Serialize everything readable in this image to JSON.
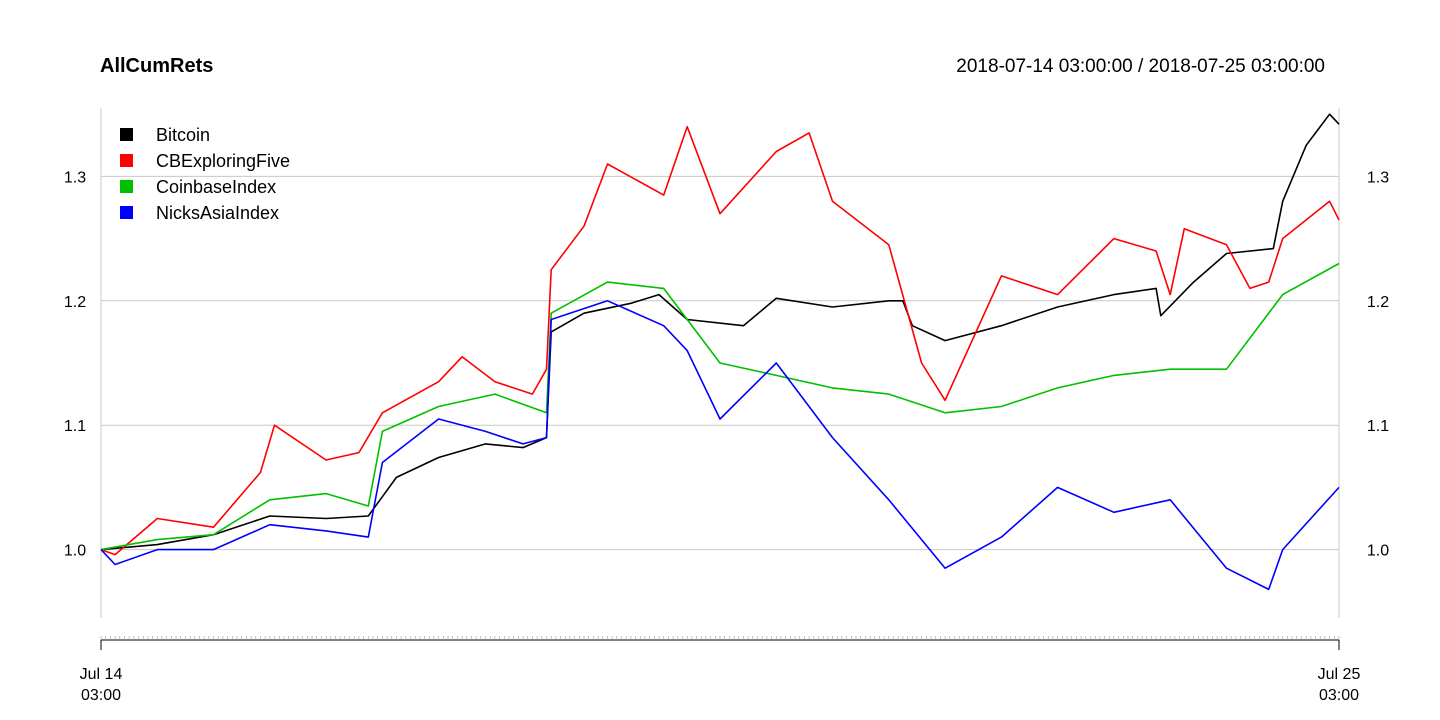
{
  "chart_data": {
    "type": "line",
    "title": "AllCumRets",
    "date_range": "2018-07-14 03:00:00 / 2018-07-25 03:00:00",
    "x_start": "2018-07-14 03:00",
    "x_end": "2018-07-25 03:00",
    "x_ticks": [
      {
        "date": "2018-07-14 03:00",
        "line1": "Jul 14",
        "line2": "03:00"
      },
      {
        "date": "2018-07-25 03:00",
        "line1": "Jul 25",
        "line2": "03:00"
      }
    ],
    "y_ticks": [
      1.0,
      1.1,
      1.2,
      1.3
    ],
    "ylim": [
      0.945,
      1.355
    ],
    "grid": true,
    "legend_position": "top-left",
    "colors": {
      "Bitcoin": "#000000",
      "CBExploringFive": "#ff0000",
      "CoinbaseIndex": "#00c000",
      "NicksAsiaIndex": "#0000ff"
    },
    "series": [
      {
        "name": "Bitcoin",
        "points": [
          [
            "2018-07-14 03:00",
            1.0
          ],
          [
            "2018-07-14 15:00",
            1.004
          ],
          [
            "2018-07-15 03:00",
            1.012
          ],
          [
            "2018-07-15 15:00",
            1.027
          ],
          [
            "2018-07-16 03:00",
            1.025
          ],
          [
            "2018-07-16 12:00",
            1.027
          ],
          [
            "2018-07-16 18:00",
            1.058
          ],
          [
            "2018-07-17 03:00",
            1.074
          ],
          [
            "2018-07-17 13:00",
            1.085
          ],
          [
            "2018-07-17 21:00",
            1.082
          ],
          [
            "2018-07-18 02:00",
            1.09
          ],
          [
            "2018-07-18 03:00",
            1.175
          ],
          [
            "2018-07-18 10:00",
            1.19
          ],
          [
            "2018-07-18 20:00",
            1.198
          ],
          [
            "2018-07-19 02:00",
            1.205
          ],
          [
            "2018-07-19 08:00",
            1.185
          ],
          [
            "2018-07-19 20:00",
            1.18
          ],
          [
            "2018-07-20 03:00",
            1.202
          ],
          [
            "2018-07-20 15:00",
            1.195
          ],
          [
            "2018-07-21 03:00",
            1.2
          ],
          [
            "2018-07-21 06:00",
            1.2
          ],
          [
            "2018-07-21 08:00",
            1.18
          ],
          [
            "2018-07-21 15:00",
            1.168
          ],
          [
            "2018-07-22 03:00",
            1.18
          ],
          [
            "2018-07-22 15:00",
            1.195
          ],
          [
            "2018-07-23 03:00",
            1.205
          ],
          [
            "2018-07-23 12:00",
            1.21
          ],
          [
            "2018-07-23 13:00",
            1.188
          ],
          [
            "2018-07-23 20:00",
            1.215
          ],
          [
            "2018-07-24 03:00",
            1.238
          ],
          [
            "2018-07-24 13:00",
            1.242
          ],
          [
            "2018-07-24 15:00",
            1.28
          ],
          [
            "2018-07-24 20:00",
            1.325
          ],
          [
            "2018-07-25 01:00",
            1.35
          ],
          [
            "2018-07-25 03:00",
            1.342
          ]
        ]
      },
      {
        "name": "CBExploringFive",
        "points": [
          [
            "2018-07-14 03:00",
            1.0
          ],
          [
            "2018-07-14 06:00",
            0.996
          ],
          [
            "2018-07-14 15:00",
            1.025
          ],
          [
            "2018-07-15 03:00",
            1.018
          ],
          [
            "2018-07-15 13:00",
            1.062
          ],
          [
            "2018-07-15 16:00",
            1.1
          ],
          [
            "2018-07-16 03:00",
            1.072
          ],
          [
            "2018-07-16 10:00",
            1.078
          ],
          [
            "2018-07-16 15:00",
            1.11
          ],
          [
            "2018-07-17 03:00",
            1.135
          ],
          [
            "2018-07-17 08:00",
            1.155
          ],
          [
            "2018-07-17 15:00",
            1.135
          ],
          [
            "2018-07-17 23:00",
            1.125
          ],
          [
            "2018-07-18 02:00",
            1.145
          ],
          [
            "2018-07-18 03:00",
            1.225
          ],
          [
            "2018-07-18 10:00",
            1.26
          ],
          [
            "2018-07-18 15:00",
            1.31
          ],
          [
            "2018-07-19 03:00",
            1.285
          ],
          [
            "2018-07-19 08:00",
            1.34
          ],
          [
            "2018-07-19 15:00",
            1.27
          ],
          [
            "2018-07-20 03:00",
            1.32
          ],
          [
            "2018-07-20 10:00",
            1.335
          ],
          [
            "2018-07-20 15:00",
            1.28
          ],
          [
            "2018-07-21 03:00",
            1.245
          ],
          [
            "2018-07-21 10:00",
            1.15
          ],
          [
            "2018-07-21 15:00",
            1.12
          ],
          [
            "2018-07-22 03:00",
            1.22
          ],
          [
            "2018-07-22 15:00",
            1.205
          ],
          [
            "2018-07-23 03:00",
            1.25
          ],
          [
            "2018-07-23 12:00",
            1.24
          ],
          [
            "2018-07-23 15:00",
            1.205
          ],
          [
            "2018-07-23 18:00",
            1.258
          ],
          [
            "2018-07-24 03:00",
            1.245
          ],
          [
            "2018-07-24 08:00",
            1.21
          ],
          [
            "2018-07-24 12:00",
            1.215
          ],
          [
            "2018-07-24 15:00",
            1.25
          ],
          [
            "2018-07-25 01:00",
            1.28
          ],
          [
            "2018-07-25 03:00",
            1.265
          ]
        ]
      },
      {
        "name": "CoinbaseIndex",
        "points": [
          [
            "2018-07-14 03:00",
            1.0
          ],
          [
            "2018-07-14 15:00",
            1.008
          ],
          [
            "2018-07-15 03:00",
            1.012
          ],
          [
            "2018-07-15 15:00",
            1.04
          ],
          [
            "2018-07-16 03:00",
            1.045
          ],
          [
            "2018-07-16 12:00",
            1.035
          ],
          [
            "2018-07-16 15:00",
            1.095
          ],
          [
            "2018-07-17 03:00",
            1.115
          ],
          [
            "2018-07-17 15:00",
            1.125
          ],
          [
            "2018-07-18 02:00",
            1.11
          ],
          [
            "2018-07-18 03:00",
            1.19
          ],
          [
            "2018-07-18 15:00",
            1.215
          ],
          [
            "2018-07-19 03:00",
            1.21
          ],
          [
            "2018-07-19 15:00",
            1.15
          ],
          [
            "2018-07-20 03:00",
            1.14
          ],
          [
            "2018-07-20 15:00",
            1.13
          ],
          [
            "2018-07-21 03:00",
            1.125
          ],
          [
            "2018-07-21 15:00",
            1.11
          ],
          [
            "2018-07-22 03:00",
            1.115
          ],
          [
            "2018-07-22 15:00",
            1.13
          ],
          [
            "2018-07-23 03:00",
            1.14
          ],
          [
            "2018-07-23 15:00",
            1.145
          ],
          [
            "2018-07-24 03:00",
            1.145
          ],
          [
            "2018-07-24 15:00",
            1.205
          ],
          [
            "2018-07-25 03:00",
            1.23
          ]
        ]
      },
      {
        "name": "NicksAsiaIndex",
        "points": [
          [
            "2018-07-14 03:00",
            1.0
          ],
          [
            "2018-07-14 06:00",
            0.988
          ],
          [
            "2018-07-14 15:00",
            1.0
          ],
          [
            "2018-07-15 03:00",
            1.0
          ],
          [
            "2018-07-15 15:00",
            1.02
          ],
          [
            "2018-07-16 03:00",
            1.015
          ],
          [
            "2018-07-16 12:00",
            1.01
          ],
          [
            "2018-07-16 15:00",
            1.07
          ],
          [
            "2018-07-17 03:00",
            1.105
          ],
          [
            "2018-07-17 13:00",
            1.095
          ],
          [
            "2018-07-17 21:00",
            1.085
          ],
          [
            "2018-07-18 02:00",
            1.09
          ],
          [
            "2018-07-18 03:00",
            1.185
          ],
          [
            "2018-07-18 15:00",
            1.2
          ],
          [
            "2018-07-19 03:00",
            1.18
          ],
          [
            "2018-07-19 08:00",
            1.16
          ],
          [
            "2018-07-19 15:00",
            1.105
          ],
          [
            "2018-07-20 03:00",
            1.15
          ],
          [
            "2018-07-20 15:00",
            1.09
          ],
          [
            "2018-07-21 03:00",
            1.04
          ],
          [
            "2018-07-21 15:00",
            0.985
          ],
          [
            "2018-07-22 03:00",
            1.01
          ],
          [
            "2018-07-22 15:00",
            1.05
          ],
          [
            "2018-07-23 03:00",
            1.03
          ],
          [
            "2018-07-23 15:00",
            1.04
          ],
          [
            "2018-07-24 03:00",
            0.985
          ],
          [
            "2018-07-24 12:00",
            0.968
          ],
          [
            "2018-07-24 15:00",
            1.0
          ],
          [
            "2018-07-25 03:00",
            1.05
          ]
        ]
      }
    ]
  }
}
